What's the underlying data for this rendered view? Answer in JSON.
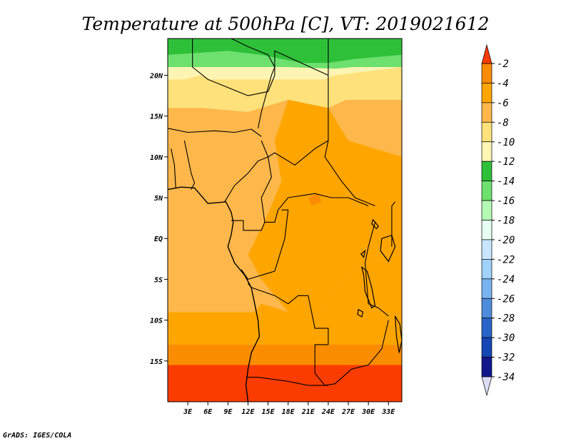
{
  "title": "Temperature at 500hPa [C], VT: 2019021612",
  "credit": "GrADS: IGES/COLA",
  "map": {
    "lon_range": [
      0,
      35
    ],
    "lat_range": [
      -20,
      24.5
    ],
    "x_ticks": [
      {
        "lon": 3,
        "label": "3E"
      },
      {
        "lon": 6,
        "label": "6E"
      },
      {
        "lon": 9,
        "label": "9E"
      },
      {
        "lon": 12,
        "label": "12E"
      },
      {
        "lon": 15,
        "label": "15E"
      },
      {
        "lon": 18,
        "label": "18E"
      },
      {
        "lon": 21,
        "label": "21E"
      },
      {
        "lon": 24,
        "label": "24E"
      },
      {
        "lon": 27,
        "label": "27E"
      },
      {
        "lon": 30,
        "label": "30E"
      },
      {
        "lon": 33,
        "label": "33E"
      }
    ],
    "y_ticks": [
      {
        "lat": 20,
        "label": "20N"
      },
      {
        "lat": 15,
        "label": "15N"
      },
      {
        "lat": 10,
        "label": "10N"
      },
      {
        "lat": 5,
        "label": "5N"
      },
      {
        "lat": 0,
        "label": "EQ"
      },
      {
        "lat": -5,
        "label": "5S"
      },
      {
        "lat": -10,
        "label": "10S"
      },
      {
        "lat": -15,
        "label": "15S"
      }
    ]
  },
  "colorbar": {
    "labels": [
      "-2",
      "-4",
      "-6",
      "-8",
      "-10",
      "-12",
      "-14",
      "-16",
      "-18",
      "-20",
      "-22",
      "-24",
      "-26",
      "-28",
      "-30",
      "-32",
      "-34"
    ],
    "colors": [
      "#fa3c00",
      "#fa8c00",
      "#ffa500",
      "#fdb74a",
      "#fee17a",
      "#fef5b4",
      "#2fc03a",
      "#6ee06e",
      "#b4fab4",
      "#e6fff0",
      "#c8e6ff",
      "#a0d2fa",
      "#78b4f0",
      "#508cdc",
      "#2864c8",
      "#1446b4",
      "#10188c"
    ]
  },
  "field_bands": [
    {
      "lat_top": 24.5,
      "lat_bottom": 22.0,
      "color": "#2fc03a"
    },
    {
      "lat_top": 22.0,
      "lat_bottom": 21.0,
      "color": "#6ee06e"
    },
    {
      "lat_top": 21.0,
      "lat_bottom": 19.5,
      "color": "#fef5b4"
    },
    {
      "lat_top": 19.5,
      "lat_bottom": 17.0,
      "color": "#fee17a"
    },
    {
      "lat_top": 17.0,
      "lat_bottom": -9.0,
      "color": "#fdb74a"
    },
    {
      "lat_top": -9.0,
      "lat_bottom": -13.0,
      "color": "#ffa500"
    },
    {
      "lat_top": -13.0,
      "lat_bottom": -15.5,
      "color": "#fa8c00"
    },
    {
      "lat_top": -15.5,
      "lat_bottom": -20.0,
      "color": "#fa3c00"
    }
  ],
  "field_patches": [
    {
      "color": "#ffa500",
      "lonlat": [
        [
          18,
          17
        ],
        [
          24,
          16
        ],
        [
          27,
          12
        ],
        [
          35,
          10
        ],
        [
          35,
          -2
        ],
        [
          30,
          -3
        ],
        [
          26,
          -5
        ],
        [
          22,
          -10
        ],
        [
          18,
          -9
        ],
        [
          14,
          -5
        ],
        [
          12,
          -2
        ],
        [
          15,
          3
        ],
        [
          17,
          7
        ],
        [
          16,
          12
        ]
      ]
    },
    {
      "color": "#ffa500",
      "lonlat": [
        [
          0,
          -10
        ],
        [
          6,
          -9
        ],
        [
          11,
          -11
        ],
        [
          14,
          -8
        ],
        [
          18,
          -9
        ],
        [
          22,
          -10
        ],
        [
          26,
          -5
        ],
        [
          30,
          -3
        ],
        [
          35,
          -2
        ],
        [
          35,
          -13
        ],
        [
          0,
          -13
        ]
      ]
    },
    {
      "color": "#fa8c00",
      "lonlat": [
        [
          21,
          5
        ],
        [
          22.5,
          5.5
        ],
        [
          23,
          4.5
        ],
        [
          21.5,
          4
        ]
      ]
    },
    {
      "color": "#fee17a",
      "lonlat": [
        [
          0,
          19
        ],
        [
          5,
          20
        ],
        [
          10,
          18
        ],
        [
          15,
          19
        ],
        [
          20,
          18.5
        ],
        [
          25,
          20
        ],
        [
          35,
          21
        ],
        [
          35,
          19
        ],
        [
          28,
          17.5
        ],
        [
          24,
          16
        ],
        [
          18,
          17
        ],
        [
          12,
          15.5
        ],
        [
          5,
          16
        ],
        [
          0,
          16
        ]
      ]
    },
    {
      "color": "#2fc03a",
      "lonlat": [
        [
          0,
          24.5
        ],
        [
          35,
          24.5
        ],
        [
          35,
          22.5
        ],
        [
          28,
          22
        ],
        [
          24,
          21.5
        ],
        [
          20,
          21.5
        ],
        [
          14,
          22.5
        ],
        [
          9,
          23
        ],
        [
          0,
          22.5
        ]
      ]
    },
    {
      "color": "#6ee06e",
      "lonlat": [
        [
          0,
          22.5
        ],
        [
          9,
          23
        ],
        [
          14,
          22.5
        ],
        [
          20,
          21.5
        ],
        [
          24,
          21.5
        ],
        [
          28,
          22
        ],
        [
          35,
          22.5
        ],
        [
          35,
          21.5
        ],
        [
          25,
          20.8
        ],
        [
          18,
          21
        ],
        [
          10,
          21.5
        ],
        [
          3,
          21.8
        ],
        [
          0,
          21.8
        ]
      ]
    }
  ],
  "borders": [
    [
      [
        3.5,
        24.5
      ],
      [
        9.5,
        24.5
      ],
      [
        12,
        23.5
      ],
      [
        15,
        22.5
      ],
      [
        16,
        21
      ],
      [
        15.5,
        20
      ],
      [
        14,
        15.5
      ],
      [
        13.5,
        13.5
      ]
    ],
    [
      [
        3.7,
        24.5
      ],
      [
        3.7,
        21
      ],
      [
        6,
        19.5
      ],
      [
        12,
        17.5
      ],
      [
        15,
        18
      ]
    ],
    [
      [
        15,
        18
      ],
      [
        16,
        20
      ],
      [
        16,
        23
      ],
      [
        24,
        20
      ]
    ],
    [
      [
        24,
        24.5
      ],
      [
        24,
        16
      ],
      [
        24,
        12
      ],
      [
        23.5,
        10
      ],
      [
        26,
        7
      ],
      [
        28,
        5
      ],
      [
        31,
        4
      ]
    ],
    [
      [
        0,
        13.5
      ],
      [
        3,
        13
      ],
      [
        7,
        13.2
      ],
      [
        10,
        13
      ],
      [
        12.5,
        13.4
      ],
      [
        14,
        12.5
      ]
    ],
    [
      [
        2.5,
        12
      ],
      [
        3,
        10
      ],
      [
        3.5,
        8
      ],
      [
        4,
        6.8
      ],
      [
        3.5,
        6
      ]
    ],
    [
      [
        0.5,
        11
      ],
      [
        1,
        9
      ],
      [
        1.2,
        6.2
      ]
    ],
    [
      [
        14,
        12
      ],
      [
        15,
        10
      ],
      [
        15.5,
        7.5
      ],
      [
        14,
        5
      ],
      [
        14.5,
        2
      ],
      [
        16,
        2
      ],
      [
        16.5,
        3.5
      ],
      [
        18,
        5
      ],
      [
        22,
        5.5
      ],
      [
        24.5,
        5
      ],
      [
        27,
        5
      ],
      [
        30,
        4
      ]
    ],
    [
      [
        8.5,
        4.5
      ],
      [
        10,
        6.5
      ],
      [
        12,
        8
      ],
      [
        13.5,
        9.5
      ],
      [
        15,
        10
      ],
      [
        16,
        10.5
      ],
      [
        19,
        9
      ],
      [
        22,
        11
      ],
      [
        24,
        12
      ]
    ],
    [
      [
        9.5,
        2.2
      ],
      [
        11.3,
        2.2
      ],
      [
        11.3,
        1
      ],
      [
        14,
        1
      ],
      [
        14.5,
        2
      ]
    ],
    [
      [
        11,
        -3.8
      ],
      [
        12,
        -5
      ],
      [
        14,
        -4.5
      ],
      [
        16,
        -4
      ],
      [
        17.5,
        0
      ],
      [
        18,
        3.5
      ],
      [
        17,
        3.5
      ]
    ],
    [
      [
        12,
        -5.5
      ],
      [
        12.5,
        -6
      ],
      [
        16,
        -7
      ],
      [
        18,
        -8
      ],
      [
        19.5,
        -7
      ],
      [
        21,
        -7
      ],
      [
        22,
        -11
      ],
      [
        24,
        -11
      ],
      [
        24,
        -13
      ],
      [
        22,
        -13
      ],
      [
        22,
        -16.5
      ],
      [
        23.5,
        -18
      ],
      [
        25,
        -17.8
      ],
      [
        27.5,
        -16
      ],
      [
        30,
        -15.5
      ],
      [
        32,
        -13.5
      ],
      [
        33,
        -10
      ]
    ],
    [
      [
        11.7,
        -17
      ],
      [
        13.5,
        -17
      ],
      [
        18,
        -17.5
      ],
      [
        21,
        -18
      ],
      [
        24,
        -18
      ]
    ],
    [
      [
        30,
        -1
      ],
      [
        29.5,
        -3
      ],
      [
        30,
        -8
      ],
      [
        31.5,
        -8.5
      ],
      [
        33,
        -9.5
      ]
    ],
    [
      [
        31,
        2
      ],
      [
        30,
        -1
      ]
    ],
    [
      [
        33.5,
        -1
      ],
      [
        33.5,
        4
      ],
      [
        34,
        4.5
      ]
    ]
  ],
  "coastline": [
    [
      [
        0,
        6
      ],
      [
        2,
        6.3
      ],
      [
        4,
        6.2
      ],
      [
        6,
        4.3
      ],
      [
        7.5,
        4.4
      ],
      [
        8.7,
        4.5
      ],
      [
        9.5,
        3.2
      ],
      [
        9.8,
        2
      ],
      [
        9.5,
        0.5
      ],
      [
        9,
        -1
      ],
      [
        10,
        -3
      ],
      [
        11.5,
        -4.5
      ],
      [
        12.5,
        -6
      ],
      [
        13,
        -8
      ],
      [
        13.5,
        -10
      ],
      [
        13.7,
        -12
      ],
      [
        12.5,
        -14
      ],
      [
        12,
        -16
      ],
      [
        11.7,
        -18
      ],
      [
        12,
        -20
      ]
    ]
  ],
  "lakes": [
    [
      [
        32,
        0
      ],
      [
        33.5,
        0.4
      ],
      [
        34,
        -1
      ],
      [
        33,
        -2.8
      ],
      [
        31.8,
        -1.5
      ]
    ],
    [
      [
        29,
        -3.5
      ],
      [
        29.8,
        -4
      ],
      [
        30.5,
        -6
      ],
      [
        31,
        -8.2
      ],
      [
        30.5,
        -8.5
      ],
      [
        29.5,
        -6.5
      ],
      [
        29.3,
        -4.5
      ]
    ],
    [
      [
        34,
        -9.5
      ],
      [
        34.7,
        -10.5
      ],
      [
        35,
        -12.5
      ],
      [
        34.6,
        -14
      ],
      [
        34.2,
        -12
      ]
    ],
    [
      [
        29.5,
        -1.5
      ],
      [
        29.3,
        -2.3
      ],
      [
        28.9,
        -1.9
      ]
    ],
    [
      [
        30.7,
        2.3
      ],
      [
        31.5,
        1.5
      ],
      [
        31.2,
        1.2
      ],
      [
        30.5,
        1.8
      ]
    ],
    [
      [
        28.5,
        -8.7
      ],
      [
        29.2,
        -9
      ],
      [
        29,
        -9.6
      ],
      [
        28.4,
        -9.3
      ]
    ]
  ]
}
